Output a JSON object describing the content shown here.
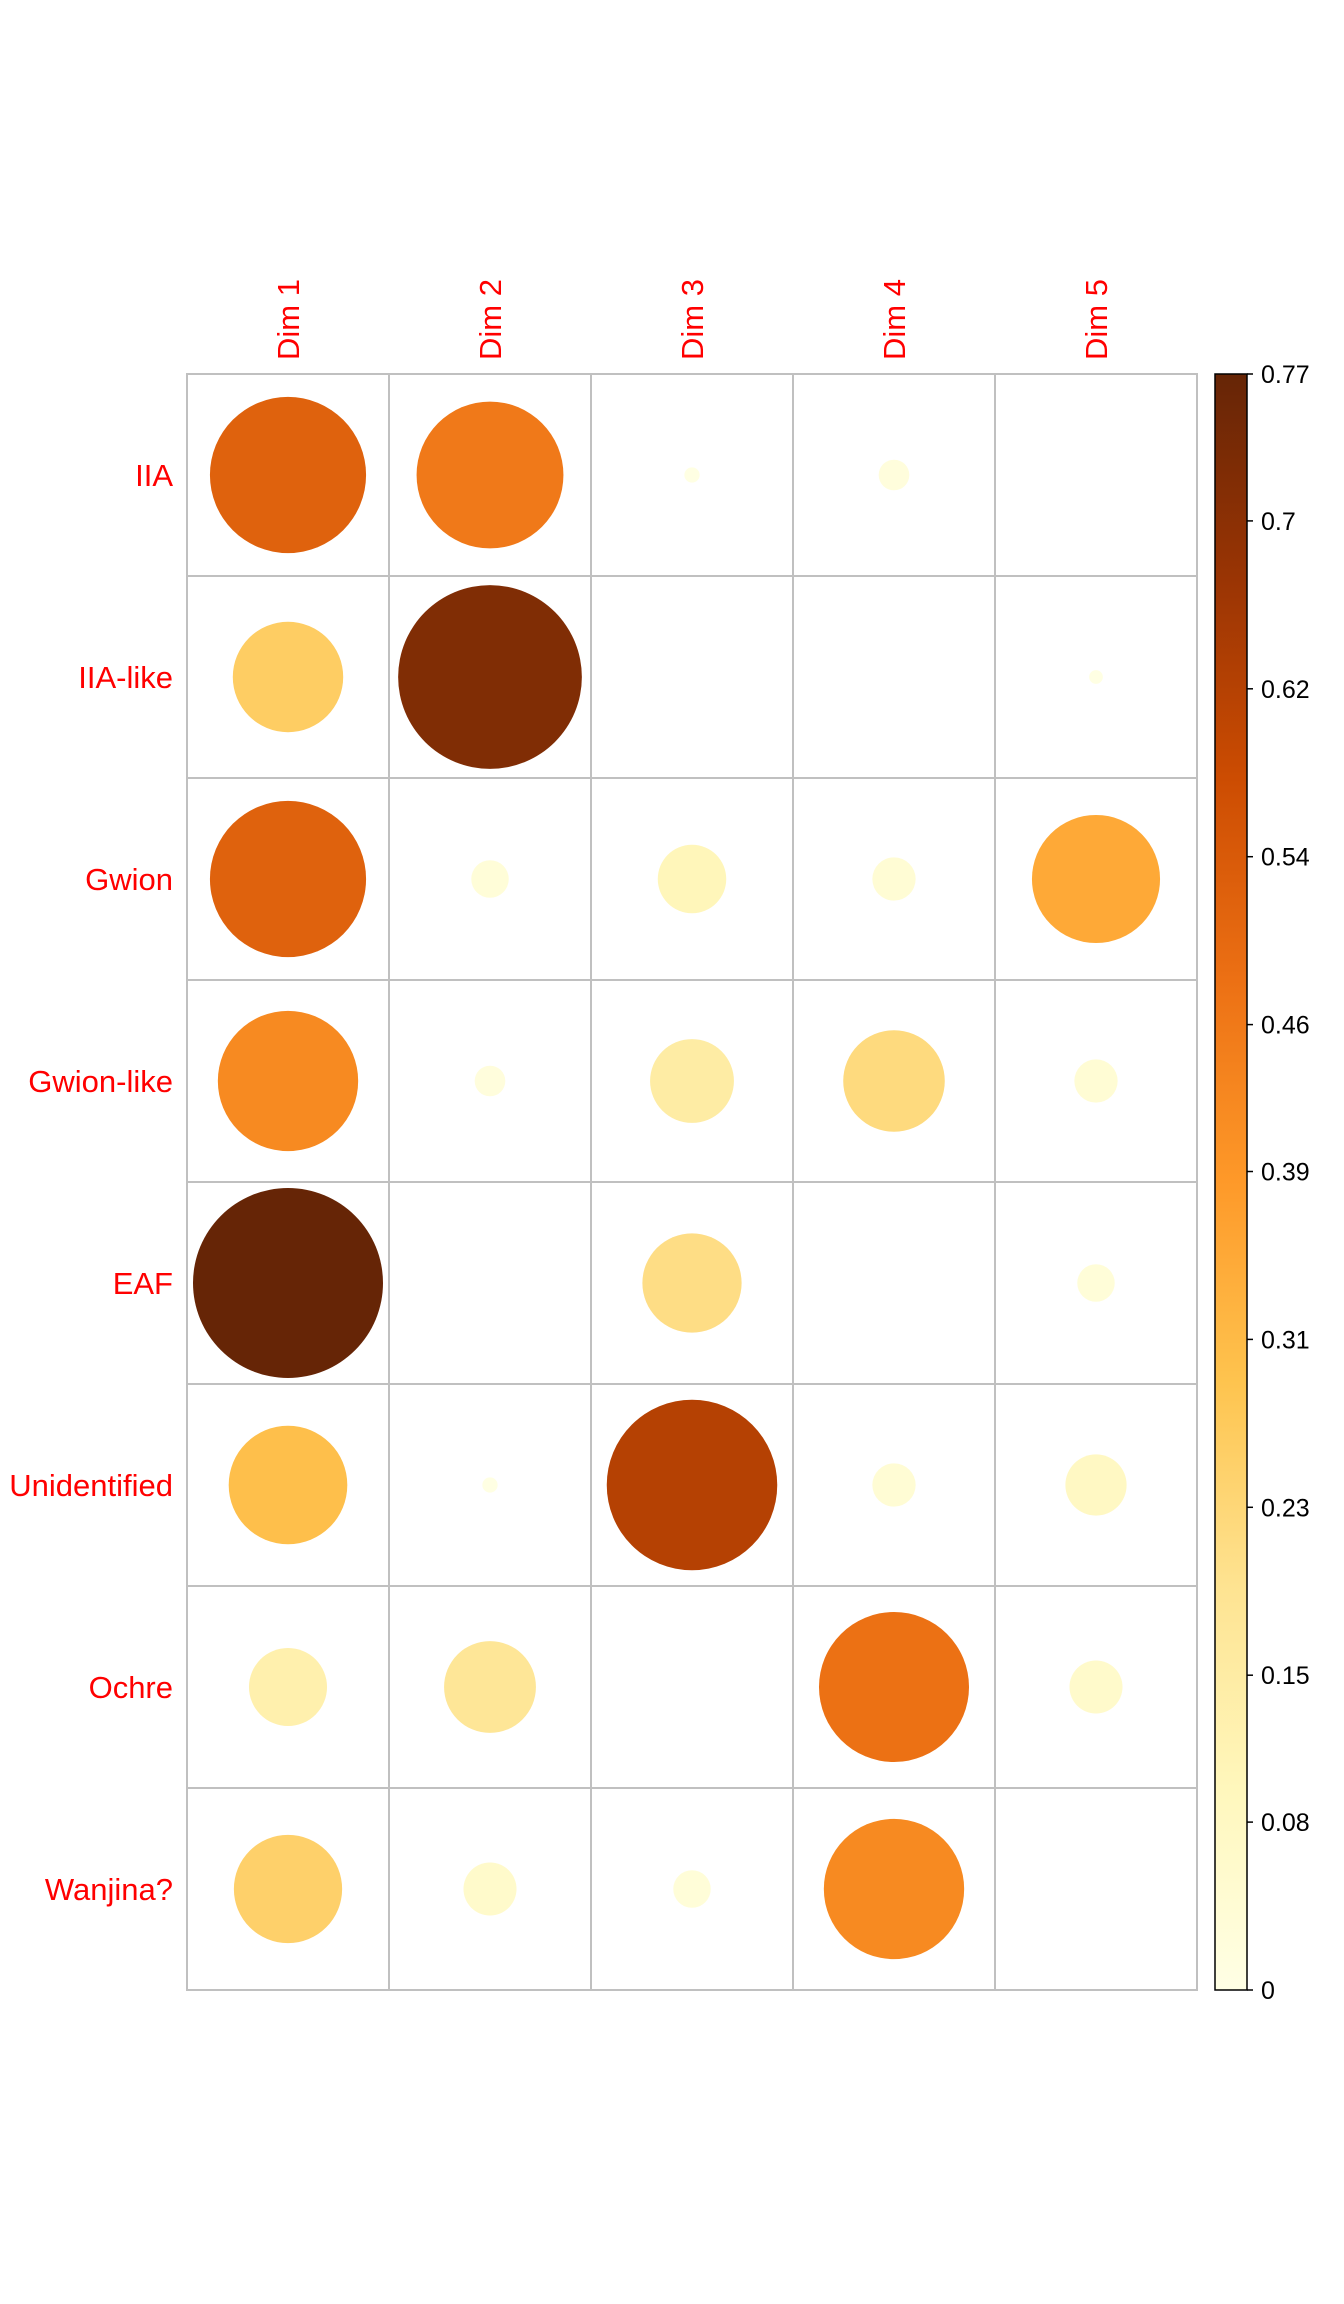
{
  "chart_data": {
    "type": "heatmap",
    "title": "",
    "rows": [
      "IIA",
      "IIA-like",
      "Gwion",
      "Gwion-like",
      "EAF",
      "Unidentified",
      "Ochre",
      "Wanjina?"
    ],
    "columns": [
      "Dim 1",
      "Dim 2",
      "Dim 3",
      "Dim 4",
      "Dim 5"
    ],
    "values": [
      [
        0.52,
        0.46,
        0.005,
        0.02,
        0.0
      ],
      [
        0.26,
        0.72,
        0.0,
        0.0,
        0.004
      ],
      [
        0.52,
        0.03,
        0.1,
        0.04,
        0.35
      ],
      [
        0.42,
        0.02,
        0.15,
        0.22,
        0.04
      ],
      [
        0.77,
        0.0,
        0.21,
        0.0,
        0.03
      ],
      [
        0.3,
        0.005,
        0.62,
        0.04,
        0.08
      ],
      [
        0.13,
        0.18,
        0.0,
        0.48,
        0.06
      ],
      [
        0.25,
        0.06,
        0.03,
        0.42,
        0.0
      ]
    ],
    "colorbar": {
      "min": 0,
      "max": 0.77,
      "ticks": [
        "0",
        "0.08",
        "0.15",
        "0.23",
        "0.31",
        "0.39",
        "0.46",
        "0.54",
        "0.62",
        "0.7",
        "0.77"
      ],
      "colors": [
        "#FFFFE5",
        "#FFF7BC",
        "#FEE391",
        "#FEC44F",
        "#FE9929",
        "#EC7014",
        "#CC4C02",
        "#993404",
        "#662506"
      ]
    },
    "encoding": "circle area and color proportional to value",
    "grid": true,
    "label_color": "#ff0000"
  }
}
